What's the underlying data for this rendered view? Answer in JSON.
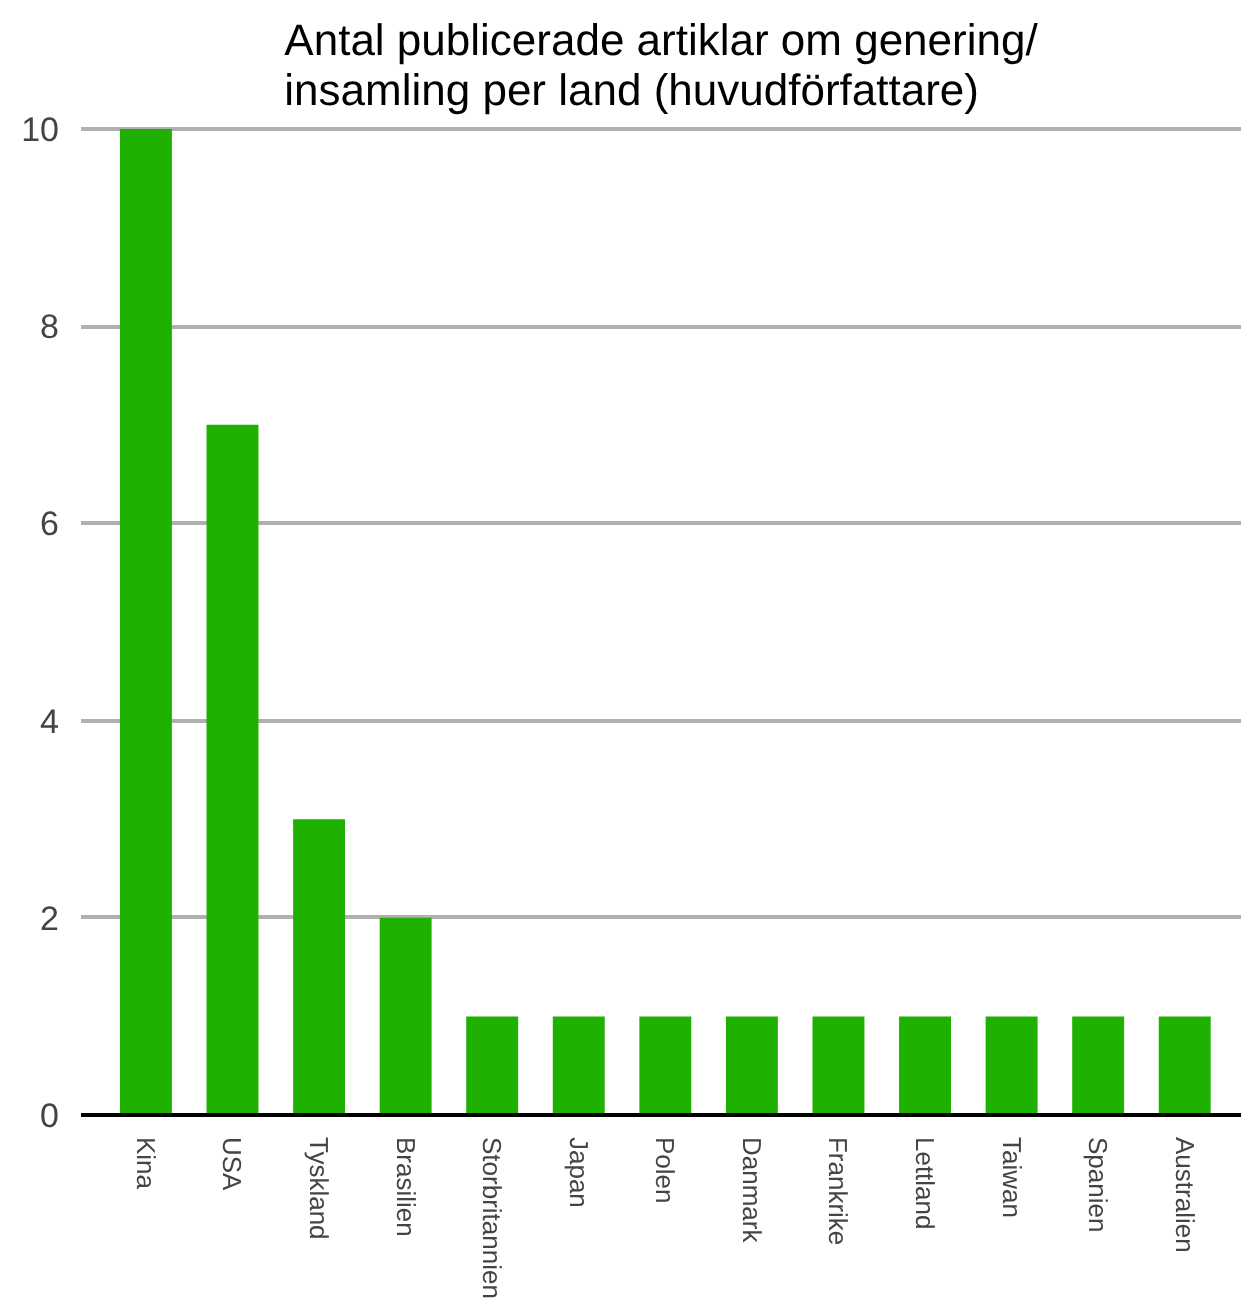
{
  "chart_data": {
    "type": "bar",
    "title": "Antal publicerade artiklar om genering/\ninsamling per land (huvudförfattare)",
    "categories": [
      "Kina",
      "USA",
      "Tyskland",
      "Brasilien",
      "Storbritannien",
      "Japan",
      "Polen",
      "Danmark",
      "Frankrike",
      "Lettland",
      "Taiwan",
      "Spanien",
      "Australien"
    ],
    "values": [
      10,
      7,
      3,
      2,
      1,
      1,
      1,
      1,
      1,
      1,
      1,
      1,
      1
    ],
    "color": "#1fb100",
    "ylim": [
      0,
      10
    ],
    "yticks": [
      0,
      2,
      4,
      6,
      8,
      10
    ],
    "grid": "y"
  }
}
